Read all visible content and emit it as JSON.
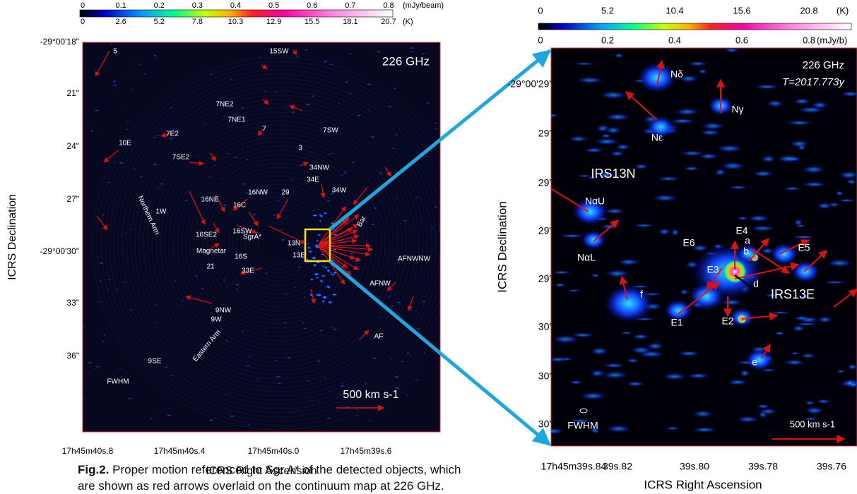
{
  "left_panel": {
    "colorbar_top_ticks": [
      "0",
      "0.1",
      "0.2",
      "0.3",
      "0.4",
      "0.5",
      "0.6",
      "0.7",
      "0.8"
    ],
    "colorbar_top_unit": "(mJy/beam)",
    "colorbar_bottom_ticks": [
      "0",
      "2.6",
      "5.2",
      "7.8",
      "10.3",
      "12.9",
      "15.5",
      "18.1",
      "20.7"
    ],
    "colorbar_bottom_unit": "(K)",
    "frequency": "226 GHz",
    "y_ticks": [
      "-29°00'18\"",
      "21\"",
      "24\"",
      "27\"",
      "-29°00'30\"",
      "33\"",
      "36\""
    ],
    "x_ticks": [
      "17h45m40s.8",
      "17h45m40s.4",
      "17h45m40s.0",
      "17h45m39s.6"
    ],
    "x_label": "ICRS Right Ascension",
    "y_label": "ICRS Declination",
    "labels": [
      "5",
      "15SW",
      "7NE2",
      "7NE1",
      "7",
      "7SW",
      "7E2",
      "10E",
      "3",
      "7SE2",
      "34NW",
      "34E",
      "34W",
      "16NE",
      "16NW",
      "29",
      "16C",
      "1W",
      "Northern Arm",
      "SgrA*",
      "16SW",
      "Bar",
      "16SE2",
      "13N",
      "Magnetar",
      "16S",
      "13E",
      "AFNWNW",
      "21",
      "33E",
      "AFNW",
      "9NW",
      "9W",
      "Eastern Arm",
      "AF",
      "9SE",
      "FWHM"
    ],
    "scale_label": "500 km s-1"
  },
  "right_panel": {
    "colorbar_top_ticks": [
      "0",
      "5.2",
      "10.4",
      "15.6",
      "20.8"
    ],
    "colorbar_top_unit": "(K)",
    "colorbar_bottom_ticks": [
      "0",
      "0.2",
      "0.4",
      "0.6",
      "0.8"
    ],
    "colorbar_bottom_unit": "(mJy/b)",
    "frequency": "226 GHz",
    "epoch": "T=2017.773y",
    "y_ticks": [
      "-29°00'29\".0",
      "29\".2",
      "29\".4",
      "29\".6",
      "29\".8",
      "30\".0",
      "30\".2",
      "30\".4"
    ],
    "x_ticks": [
      "17h45m39s.84",
      "39s.82",
      "39s.80",
      "39s.78",
      "39s.76"
    ],
    "x_label": "ICRS Right Ascension",
    "y_label": "ICRS Declination",
    "labels": [
      "Nδ",
      "Nγ",
      "Nε",
      "IRS13N",
      "NαU",
      "NαL",
      "E6",
      "a",
      "E4",
      "b",
      "E5",
      "E3",
      "d",
      "IRS13E",
      "f",
      "E1",
      "E2",
      "e",
      "FWHM"
    ],
    "scale_label": "500 km s-1"
  },
  "caption": {
    "label": "Fig.2.",
    "text": "Proper motion referenced to Sgr A* of the detected objects, which are shown as red arrows overlaid on the continuum map at 226 GHz."
  }
}
